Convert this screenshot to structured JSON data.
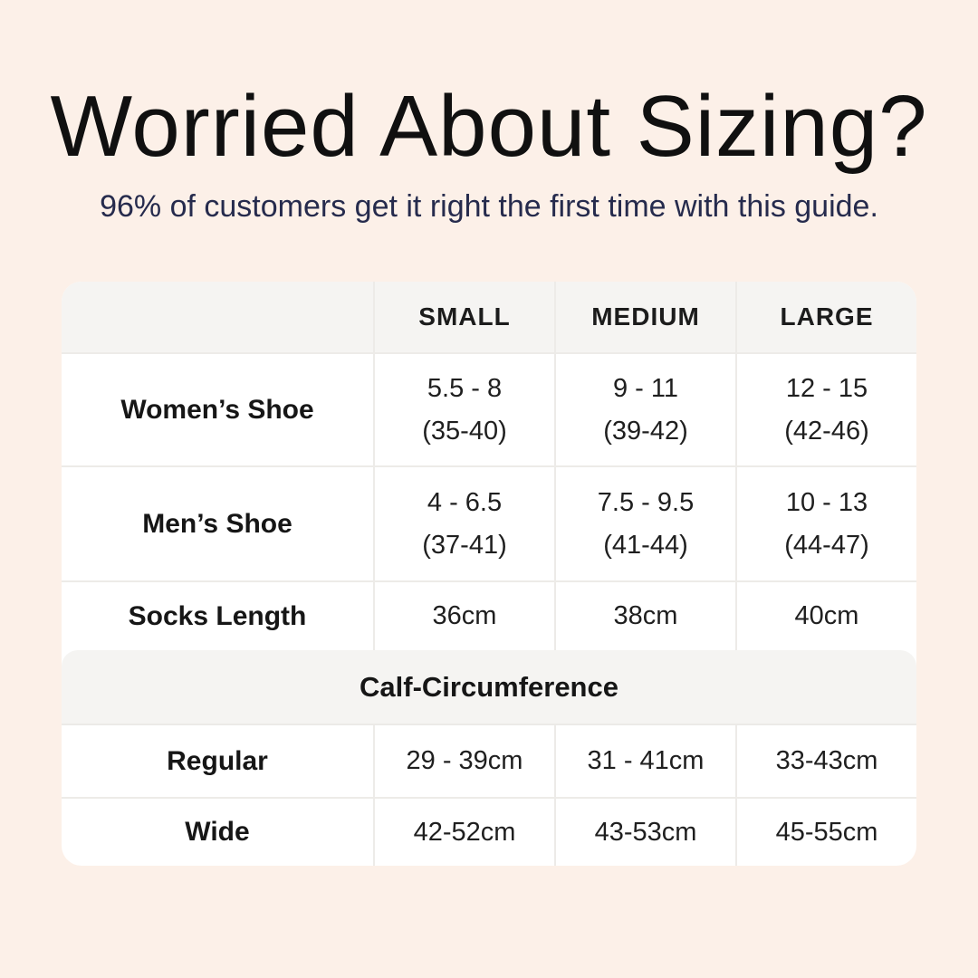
{
  "colors": {
    "background": "#fcf0e8",
    "card": "#ffffff",
    "header_band": "#f5f4f2",
    "separator": "#edebe8",
    "title_text": "#101010",
    "subtitle_text": "#262b4d",
    "table_text": "#1b1b1b"
  },
  "header": {
    "title": "Worried About Sizing?",
    "subtitle": "96% of customers get it right the first time with this guide."
  },
  "table": {
    "col_headers": [
      "SMALL",
      "MEDIUM",
      "LARGE"
    ],
    "shoe_rows": [
      {
        "label": "Women’s Shoe",
        "small": [
          "5.5 - 8",
          "(35-40)"
        ],
        "medium": [
          "9 - 11",
          "(39-42)"
        ],
        "large": [
          "12 - 15",
          "(42-46)"
        ]
      },
      {
        "label": "Men’s Shoe",
        "small": [
          "4 - 6.5",
          "(37-41)"
        ],
        "medium": [
          "7.5 - 9.5",
          "(41-44)"
        ],
        "large": [
          "10 - 13",
          "(44-47)"
        ]
      }
    ],
    "socks_row": {
      "label": "Socks Length",
      "small": "36cm",
      "medium": "38cm",
      "large": "40cm"
    },
    "calf_section": {
      "title": "Calf-Circumference",
      "rows": [
        {
          "label": "Regular",
          "small": "29 - 39cm",
          "medium": "31 - 41cm",
          "large": "33-43cm"
        },
        {
          "label": "Wide",
          "small": "42-52cm",
          "medium": "43-53cm",
          "large": "45-55cm"
        }
      ]
    }
  },
  "chart_data": {
    "type": "table",
    "title": "Worried About Sizing?",
    "subtitle": "96% of customers get it right the first time with this guide.",
    "columns": [
      "",
      "SMALL",
      "MEDIUM",
      "LARGE"
    ],
    "rows": [
      [
        "Women’s Shoe",
        "5.5 - 8 (35-40)",
        "9 - 11 (39-42)",
        "12 - 15 (42-46)"
      ],
      [
        "Men’s Shoe",
        "4 - 6.5 (37-41)",
        "7.5 - 9.5 (41-44)",
        "10 - 13 (44-47)"
      ],
      [
        "Socks Length",
        "36cm",
        "38cm",
        "40cm"
      ],
      [
        "Calf-Circumference — Regular",
        "29 - 39cm",
        "31 - 41cm",
        "33-43cm"
      ],
      [
        "Calf-Circumference — Wide",
        "42-52cm",
        "43-53cm",
        "45-55cm"
      ]
    ],
    "layout": {
      "section_header": "Calf-Circumference",
      "section_after_row": 3,
      "grid": true
    }
  }
}
